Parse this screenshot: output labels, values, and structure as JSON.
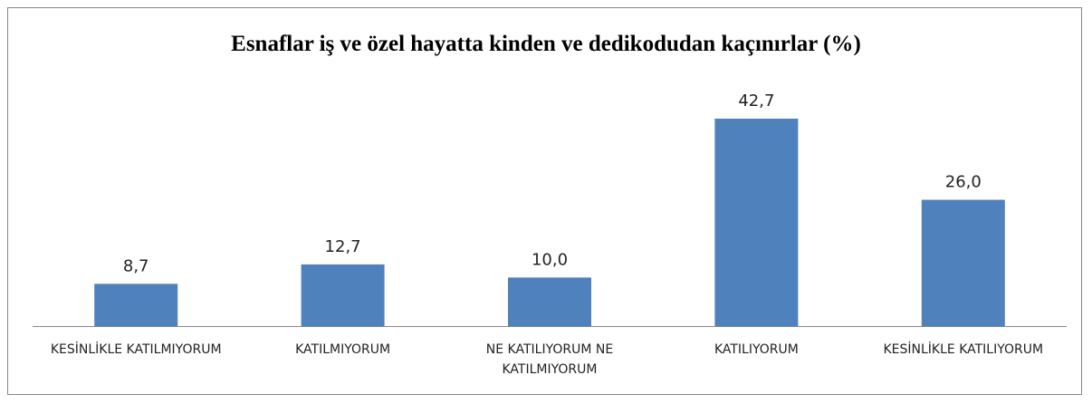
{
  "chart_data": {
    "type": "bar",
    "title": "Esnaflar iş ve özel hayatta kinden ve dedikodudan kaçınırlar (%)",
    "categories": [
      "KESİNLİKLE KATILMIYORUM",
      "KATILMIYORUM",
      "NE KATILIYORUM NE KATILMIYORUM",
      "KATILIYORUM",
      "KESİNLİKLE KATILIYORUM"
    ],
    "values": [
      8.7,
      12.7,
      10.0,
      42.7,
      26.0
    ],
    "value_labels": [
      "8,7",
      "12,7",
      "10,0",
      "42,7",
      "26,0"
    ],
    "color": "#4f81bd"
  }
}
